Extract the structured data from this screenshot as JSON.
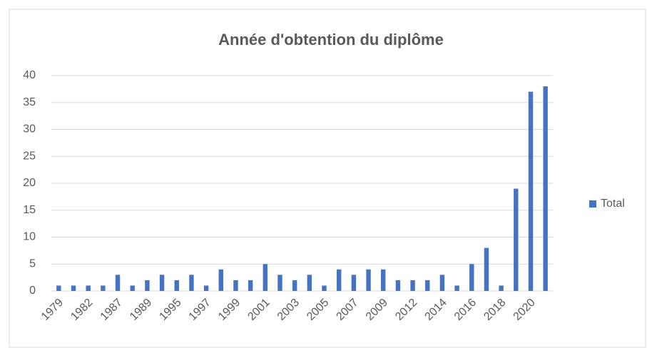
{
  "chart_data": {
    "type": "bar",
    "title": "Année d'obtention du diplôme",
    "categories": [
      "1979",
      null,
      "1982",
      null,
      "1987",
      null,
      "1989",
      null,
      "1995",
      null,
      "1997",
      null,
      "1999",
      null,
      "2001",
      null,
      "2003",
      null,
      "2005",
      null,
      "2007",
      null,
      "2009",
      null,
      "2012",
      null,
      "2014",
      null,
      "2016",
      null,
      "2018",
      null,
      "2020",
      null
    ],
    "series": [
      {
        "name": "Total",
        "color": "#4472c4",
        "values": [
          1,
          1,
          1,
          1,
          3,
          1,
          2,
          3,
          2,
          3,
          1,
          4,
          2,
          2,
          5,
          3,
          2,
          3,
          1,
          4,
          3,
          4,
          4,
          2,
          2,
          2,
          3,
          1,
          5,
          8,
          1,
          19,
          37,
          38
        ]
      }
    ],
    "ylim": [
      0,
      40
    ],
    "yticks": [
      0,
      5,
      10,
      15,
      20,
      25,
      30,
      35,
      40
    ],
    "grid": true,
    "legend": "right"
  }
}
